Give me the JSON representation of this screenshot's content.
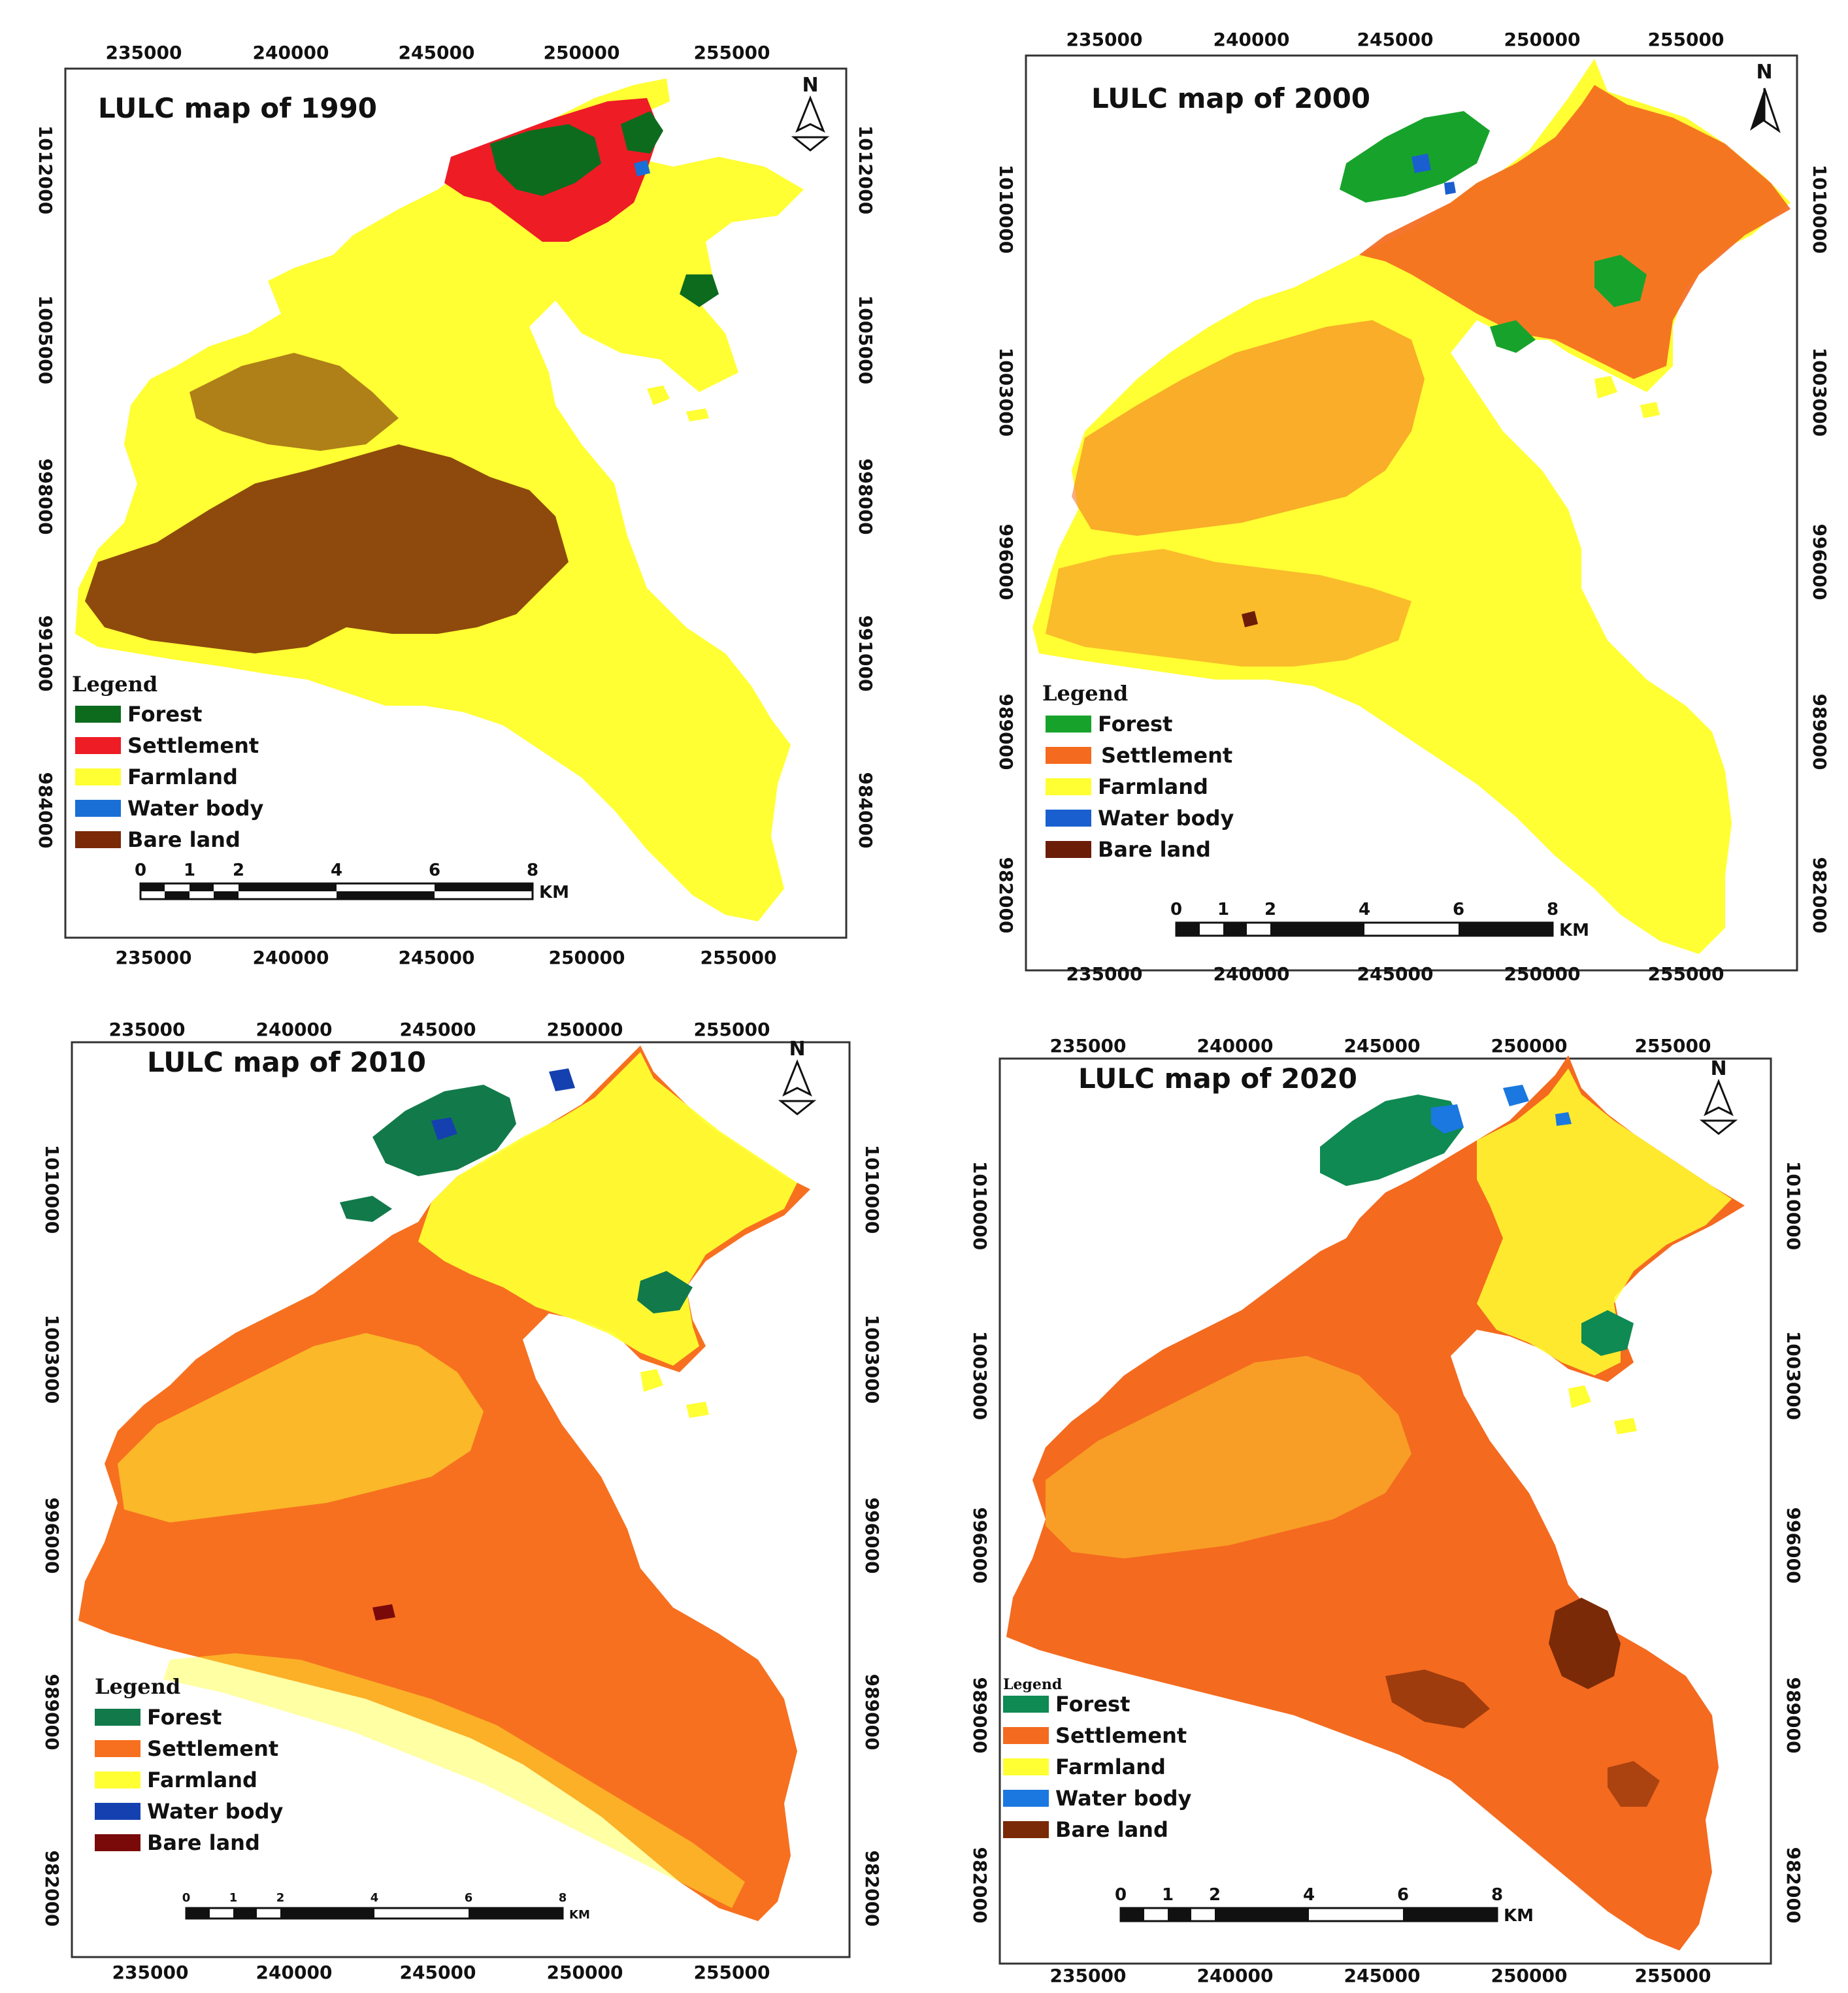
{
  "panels": [
    {
      "title": "LULC map of 1990",
      "x_ticks": [
        "235000",
        "240000",
        "245000",
        "250000",
        "255000"
      ],
      "y_ticks": [
        "1012000",
        "1005000",
        "998000",
        "991000",
        "984000"
      ],
      "palette": {
        "forest": "#0d6b1e",
        "settlement": "#ee1c25",
        "farmland": "#ffff33",
        "water": "#1a6fd6",
        "bare": "#7a2a06"
      },
      "legend": [
        {
          "label": "Forest",
          "key": "forest"
        },
        {
          "label": "Settlement",
          "key": "settlement"
        },
        {
          "label": "Farmland",
          "key": "farmland"
        },
        {
          "label": "Water body",
          "key": "water"
        },
        {
          "label": "Bare land",
          "key": "bare"
        }
      ]
    },
    {
      "title": "LULC map of 2000",
      "x_ticks": [
        "235000",
        "240000",
        "245000",
        "250000",
        "255000"
      ],
      "y_ticks": [
        "1010000",
        "1003000",
        "996000",
        "989000",
        "982000"
      ],
      "palette": {
        "forest": "#17a32b",
        "settlement": "#f46a1f",
        "farmland": "#ffff33",
        "water": "#1a5fd0",
        "bare": "#6b1d08"
      },
      "legend": [
        {
          "label": "Forest",
          "key": "forest"
        },
        {
          "label": "Settlement",
          "key": "settlement"
        },
        {
          "label": "Farmland",
          "key": "farmland"
        },
        {
          "label": "Water body",
          "key": "water"
        },
        {
          "label": "Bare land",
          "key": "bare"
        }
      ]
    },
    {
      "title": "LULC map of 2010",
      "x_ticks": [
        "235000",
        "240000",
        "245000",
        "250000",
        "255000"
      ],
      "y_ticks": [
        "1010000",
        "1003000",
        "996000",
        "989000",
        "982000"
      ],
      "palette": {
        "forest": "#127a4a",
        "settlement": "#f7701f",
        "farmland": "#ffff33",
        "water": "#1440b0",
        "bare": "#7a0a0a"
      },
      "legend": [
        {
          "label": "Forest",
          "key": "forest"
        },
        {
          "label": "Settlement",
          "key": "settlement"
        },
        {
          "label": "Farmland",
          "key": "farmland"
        },
        {
          "label": "Water body",
          "key": "water"
        },
        {
          "label": "Bare land",
          "key": "bare"
        }
      ]
    },
    {
      "title": "LULC map of 2020",
      "x_ticks": [
        "235000",
        "240000",
        "245000",
        "250000",
        "255000"
      ],
      "y_ticks": [
        "1010000",
        "1003000",
        "996000",
        "989000",
        "982000"
      ],
      "palette": {
        "forest": "#0f8a52",
        "settlement": "#f46a1f",
        "farmland": "#ffff33",
        "water": "#1a78e0",
        "bare": "#7a2a06"
      },
      "legend": [
        {
          "label": "Forest",
          "key": "forest"
        },
        {
          "label": "Settlement",
          "key": "settlement"
        },
        {
          "label": "Farmland",
          "key": "farmland"
        },
        {
          "label": "Water body",
          "key": "water"
        },
        {
          "label": "Bare land",
          "key": "bare"
        }
      ]
    }
  ],
  "legend_title": "Legend",
  "north_letter": "N",
  "scale_labels": [
    "0",
    "1",
    "2",
    "4",
    "6",
    "8"
  ],
  "scale_unit": "KM"
}
